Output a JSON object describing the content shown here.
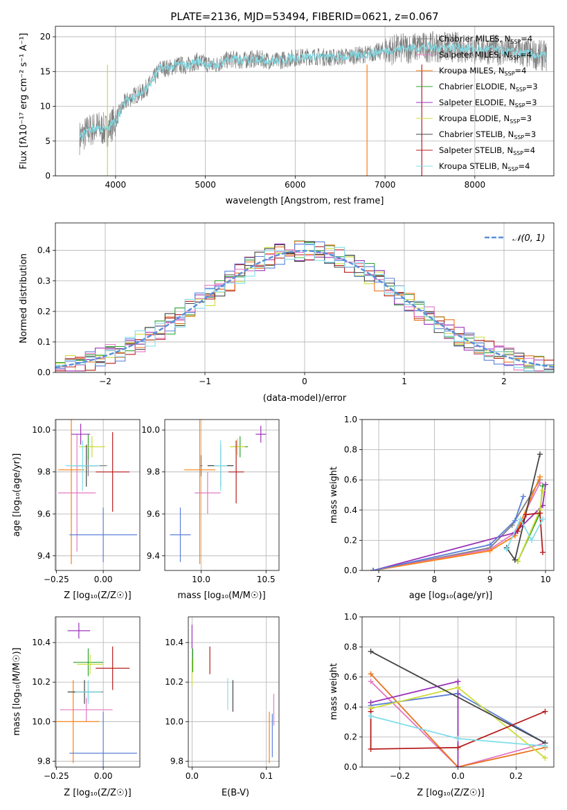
{
  "colors": {
    "Chabrier MILES": "#7f7f7f",
    "Salpeter MILES": "#e377c2",
    "Kroupa MILES": "#ff7f0e",
    "Chabrier ELODIE": "#2ca02c",
    "Salpeter ELODIE": "#9b30b8",
    "Kroupa ELODIE": "#cddc39",
    "Chabrier STELIB": "#444444",
    "Salpeter STELIB": "#b71c1c",
    "Kroupa STELIB": "#80deea",
    "Blue": "#5a7fd8",
    "Orange": "#e8731e"
  },
  "chart_data": [
    {
      "id": "spectrum",
      "type": "line",
      "title": "PLATE=2136, MJD=53494, FIBERID=0621, z=0.067",
      "xlabel": "wavelength [Angstrom, rest frame]",
      "ylabel": "Flux [fλ10⁻¹⁷ erg cm⁻² s⁻¹ A⁻¹]",
      "xlim": [
        3330,
        8880
      ],
      "ylim": [
        0,
        21.5
      ],
      "xticks": [
        "4000",
        "5000",
        "6000",
        "7000",
        "8000"
      ],
      "yticks": [
        "0",
        "5",
        "10",
        "15",
        "20"
      ],
      "legend_position": "right",
      "legend": [
        "Chabrier MILES, N_SSP=4",
        "Salpeter MILES, N_SSP=4",
        "Kroupa MILES, N_SSP=4",
        "Chabrier ELODIE, N_SSP=3",
        "Salpeter ELODIE, N_SSP=3",
        "Kroupa ELODIE, N_SSP=3",
        "Chabrier STELIB, N_SSP=3",
        "Salpeter STELIB, N_SSP=4",
        "Kroupa STELIB, N_SSP=4"
      ],
      "continuum": {
        "x": [
          3600,
          3700,
          3800,
          3900,
          4000,
          4100,
          4200,
          4300,
          4400,
          4500,
          4600,
          4700,
          4800,
          4900,
          5000,
          5100,
          5200,
          5300,
          5400,
          5500,
          5600,
          5700,
          5800,
          5900,
          6000,
          6200,
          6400,
          6600,
          6800,
          7000,
          7200,
          7400,
          7600,
          7800,
          8000,
          8200,
          8400,
          8600,
          8800
        ],
        "y": [
          5.5,
          6.5,
          7,
          6.5,
          8,
          10.5,
          11.5,
          12,
          13.5,
          15.5,
          15.5,
          16,
          15.8,
          16.5,
          16.2,
          15.8,
          16.5,
          16.8,
          16.5,
          16.8,
          16.8,
          16.6,
          16.5,
          16.8,
          17,
          17.2,
          17,
          17.2,
          17.5,
          18,
          18.3,
          18.5,
          18.5,
          18.5,
          18.2,
          18.2,
          17.8,
          17.5,
          17.2
        ]
      }
    },
    {
      "id": "residuals",
      "type": "line",
      "xlabel": "(data-model)/error",
      "ylabel": "Normed distribution",
      "xlim": [
        -2.5,
        2.5
      ],
      "ylim": [
        0,
        0.49
      ],
      "xticks": [
        "−2",
        "−1",
        "0",
        "1",
        "2"
      ],
      "yticks": [
        "0.0",
        "0.1",
        "0.2",
        "0.3",
        "0.4"
      ],
      "legend": [
        "𝒩(0, 1)"
      ],
      "legend_position": "top-right",
      "bin_width": 0.1
    },
    {
      "id": "age_vs_Z",
      "type": "scatter",
      "xlabel": "Z [log₁₀(Z/Z☉)]",
      "ylabel": "age  [log₁₀(age/yr)]",
      "xlim": [
        -0.255,
        0.195
      ],
      "ylim": [
        9.33,
        10.05
      ],
      "xticks": [
        "−0.25",
        "0.00"
      ],
      "yticks": [
        "9.4",
        "9.6",
        "9.8",
        "10.0"
      ],
      "points": [
        {
          "model": "Chabrier MILES",
          "x": -0.08,
          "xerr": 0.1,
          "y": 9.83,
          "yerr": 0.05
        },
        {
          "model": "Salpeter MILES",
          "x": -0.14,
          "xerr": 0.1,
          "y": 9.7,
          "yerr": 0.28
        },
        {
          "model": "Kroupa MILES",
          "x": -0.17,
          "xerr": 0.07,
          "y": 9.81,
          "yerr": 0.45
        },
        {
          "model": "Chabrier ELODIE",
          "x": -0.08,
          "xerr": 0.03,
          "y": 9.92,
          "yerr": 0.06
        },
        {
          "model": "Salpeter ELODIE",
          "x": -0.12,
          "xerr": 0.05,
          "y": 9.98,
          "yerr": 0.05
        },
        {
          "model": "Kroupa ELODIE",
          "x": -0.06,
          "xerr": 0.07,
          "y": 9.92,
          "yerr": 0.05
        },
        {
          "model": "Chabrier STELIB",
          "x": -0.09,
          "xerr": 0.06,
          "y": 9.83,
          "yerr": 0.1
        },
        {
          "model": "Salpeter STELIB",
          "x": 0.05,
          "xerr": 0.09,
          "y": 9.8,
          "yerr": 0.19
        },
        {
          "model": "Kroupa STELIB",
          "x": -0.11,
          "xerr": 0.09,
          "y": 9.83,
          "yerr": 0.12
        },
        {
          "model": "Blue",
          "x": 0.0,
          "xerr": 0.18,
          "y": 9.5,
          "yerr": 0.13
        }
      ]
    },
    {
      "id": "age_vs_mass",
      "type": "scatter",
      "xlabel": "mass [log₁₀(M/M☉)]",
      "xlim": [
        9.72,
        10.6
      ],
      "ylim": [
        9.33,
        10.05
      ],
      "xticks": [
        "10.0",
        "10.5"
      ],
      "yticks": [
        "9.4",
        "9.6",
        "9.8",
        "10.0"
      ],
      "points": [
        {
          "model": "Chabrier MILES",
          "x": 10.0,
          "xerr": 0.01,
          "y": 9.83,
          "yerr": 0.05
        },
        {
          "model": "Salpeter MILES",
          "x": 10.05,
          "xerr": 0.1,
          "y": 9.7,
          "yerr": 0.1
        },
        {
          "model": "Kroupa MILES",
          "x": 9.99,
          "xerr": 0.12,
          "y": 9.81,
          "yerr": 0.45
        },
        {
          "model": "Chabrier ELODIE",
          "x": 10.3,
          "xerr": 0.06,
          "y": 9.92,
          "yerr": 0.05
        },
        {
          "model": "Salpeter ELODIE",
          "x": 10.46,
          "xerr": 0.04,
          "y": 9.98,
          "yerr": 0.04
        },
        {
          "model": "Kroupa ELODIE",
          "x": 10.28,
          "xerr": 0.06,
          "y": 9.92,
          "yerr": 0.04
        },
        {
          "model": "Chabrier STELIB",
          "x": 10.15,
          "xerr": 0.1,
          "y": 9.83,
          "yerr": 0.1
        },
        {
          "model": "Salpeter STELIB",
          "x": 10.27,
          "xerr": 0.06,
          "y": 9.8,
          "yerr": 0.15
        },
        {
          "model": "Kroupa STELIB",
          "x": 10.15,
          "xerr": 0.05,
          "y": 9.83,
          "yerr": 0.12
        },
        {
          "model": "Blue",
          "x": 9.84,
          "xerr": 0.08,
          "y": 9.5,
          "yerr": 0.13
        }
      ]
    },
    {
      "id": "weight_vs_age",
      "type": "line",
      "xlabel": "age  [log₁₀(age/yr)]",
      "ylabel": "mass weight",
      "xlim": [
        6.7,
        10.15
      ],
      "ylim": [
        0,
        1.0
      ],
      "xticks": [
        "7",
        "8",
        "9",
        "10"
      ],
      "yticks": [
        "0.0",
        "0.2",
        "0.4",
        "0.6",
        "0.8",
        "1.0"
      ],
      "series": [
        {
          "model": "Chabrier MILES",
          "x": [
            6.9,
            9.0,
            9.4,
            9.9
          ],
          "y": [
            0.0,
            0.15,
            0.3,
            0.6
          ]
        },
        {
          "model": "Salpeter MILES",
          "x": [
            6.9,
            9.0,
            9.45,
            9.9
          ],
          "y": [
            0.0,
            0.14,
            0.25,
            0.58
          ]
        },
        {
          "model": "Kroupa MILES",
          "x": [
            6.9,
            9.0,
            9.45,
            9.9
          ],
          "y": [
            0.0,
            0.13,
            0.23,
            0.62
          ]
        },
        {
          "model": "Chabrier ELODIE",
          "x": [
            9.5,
            9.9,
            9.95
          ],
          "y": [
            0.06,
            0.38,
            0.56
          ]
        },
        {
          "model": "Salpeter ELODIE",
          "x": [
            6.9,
            9.45,
            9.95,
            10.0
          ],
          "y": [
            0.0,
            0.25,
            0.43,
            0.57
          ]
        },
        {
          "model": "Kroupa ELODIE",
          "x": [
            9.5,
            9.9,
            9.95
          ],
          "y": [
            0.06,
            0.4,
            0.53
          ]
        },
        {
          "model": "Chabrier STELIB",
          "x": [
            9.3,
            9.45,
            9.9
          ],
          "y": [
            0.15,
            0.07,
            0.77
          ]
        },
        {
          "model": "Salpeter STELIB",
          "x": [
            9.5,
            9.65,
            9.9,
            9.95
          ],
          "y": [
            0.26,
            0.37,
            0.38,
            0.12
          ]
        },
        {
          "model": "Kroupa STELIB",
          "x": [
            9.3,
            9.55,
            9.75,
            9.95
          ],
          "y": [
            0.14,
            0.34,
            0.2,
            0.34
          ]
        },
        {
          "model": "Blue",
          "x": [
            6.9,
            9.0,
            9.45,
            9.6
          ],
          "y": [
            0.0,
            0.17,
            0.33,
            0.49
          ]
        }
      ]
    },
    {
      "id": "mass_vs_Z",
      "type": "scatter",
      "xlabel": "Z [log₁₀(Z/Z☉)]",
      "ylabel": "mass [log₁₀(M/M☉)]",
      "xlim": [
        -0.255,
        0.195
      ],
      "ylim": [
        9.77,
        10.53
      ],
      "xticks": [
        "−0.25",
        "0.00"
      ],
      "yticks": [
        "9.8",
        "10.0",
        "10.2",
        "10.4"
      ],
      "points": [
        {
          "model": "Chabrier MILES",
          "x": -0.08,
          "xerr": 0.08,
          "y": 10.15,
          "yerr": 0.05
        },
        {
          "model": "Salpeter MILES",
          "x": -0.09,
          "xerr": 0.14,
          "y": 10.06,
          "yerr": 0.06
        },
        {
          "model": "Kroupa MILES",
          "x": -0.16,
          "xerr": 0.14,
          "y": 10.0,
          "yerr": 0.21
        },
        {
          "model": "Chabrier ELODIE",
          "x": -0.08,
          "xerr": 0.08,
          "y": 10.3,
          "yerr": 0.07
        },
        {
          "model": "Salpeter ELODIE",
          "x": -0.13,
          "xerr": 0.06,
          "y": 10.46,
          "yerr": 0.04
        },
        {
          "model": "Kroupa ELODIE",
          "x": -0.07,
          "xerr": 0.07,
          "y": 10.29,
          "yerr": 0.05
        },
        {
          "model": "Chabrier STELIB",
          "x": -0.1,
          "xerr": 0.09,
          "y": 10.15,
          "yerr": 0.06
        },
        {
          "model": "Salpeter STELIB",
          "x": 0.05,
          "xerr": 0.09,
          "y": 10.27,
          "yerr": 0.11
        },
        {
          "model": "Kroupa STELIB",
          "x": -0.08,
          "xerr": 0.07,
          "y": 10.15,
          "yerr": 0.06
        },
        {
          "model": "Blue",
          "x": 0.0,
          "xerr": 0.18,
          "y": 9.84,
          "yerr": 0.21
        }
      ]
    },
    {
      "id": "mass_vs_ebv",
      "type": "scatter",
      "xlabel": "E(B-V)",
      "xlim": [
        -0.005,
        0.117
      ],
      "ylim": [
        9.77,
        10.53
      ],
      "xticks": [
        "0.0",
        "0.1"
      ],
      "yticks": [
        "9.8",
        "10.0",
        "10.2",
        "10.4"
      ],
      "points": [
        {
          "model": "Salpeter MILES",
          "x": 0.11,
          "xerr": 0.0,
          "y": 10.06,
          "yerr": 0.08
        },
        {
          "model": "Kroupa MILES",
          "x": 0.104,
          "xerr": 0.0,
          "y": 9.92,
          "yerr": 0.13
        },
        {
          "model": "Salpeter ELODIE",
          "x": 0.0,
          "xerr": 0.0,
          "y": 10.43,
          "yerr": 0.06
        },
        {
          "model": "Kroupa ELODIE",
          "x": 0.0,
          "xerr": 0.0,
          "y": 10.25,
          "yerr": 0.07
        },
        {
          "model": "Chabrier ELODIE",
          "x": 0.001,
          "xerr": 0.0,
          "y": 10.31,
          "yerr": 0.06
        },
        {
          "model": "Chabrier STELIB",
          "x": 0.055,
          "xerr": 0.0,
          "y": 10.13,
          "yerr": 0.08
        },
        {
          "model": "Salpeter STELIB",
          "x": 0.024,
          "xerr": 0.0,
          "y": 10.31,
          "yerr": 0.07
        },
        {
          "model": "Kroupa STELIB",
          "x": 0.048,
          "xerr": 0.0,
          "y": 10.14,
          "yerr": 0.08
        },
        {
          "model": "Blue",
          "x": 0.108,
          "xerr": 0.0,
          "y": 9.93,
          "yerr": 0.11
        }
      ]
    },
    {
      "id": "weight_vs_Z",
      "type": "line",
      "xlabel": "Z [log₁₀(Z/Z☉)]",
      "ylabel": "mass weight",
      "xlim": [
        -0.33,
        0.33
      ],
      "ylim": [
        0,
        1.0
      ],
      "xticks": [
        "−0.2",
        "0.0",
        "0.2"
      ],
      "yticks": [
        "0.0",
        "0.2",
        "0.4",
        "0.6",
        "0.8",
        "1.0"
      ],
      "series": [
        {
          "model": "Salpeter MILES",
          "x": [
            -0.3,
            0.0,
            0.3
          ],
          "y": [
            0.57,
            0.0,
            0.16
          ]
        },
        {
          "model": "Orange",
          "x": [
            -0.3,
            0.0,
            0.3
          ],
          "y": [
            0.62,
            0.0,
            0.13
          ]
        },
        {
          "model": "Blue",
          "x": [
            -0.3,
            0.0,
            0.3
          ],
          "y": [
            0.41,
            0.49,
            0.16
          ]
        },
        {
          "model": "Salpeter ELODIE",
          "x": [
            -0.3,
            0.0,
            0.0
          ],
          "y": [
            0.43,
            0.57,
            0.0
          ]
        },
        {
          "model": "Kroupa ELODIE",
          "x": [
            -0.3,
            0.0,
            0.3
          ],
          "y": [
            0.39,
            0.53,
            0.06
          ]
        },
        {
          "model": "Chabrier STELIB",
          "x": [
            -0.3,
            0.3
          ],
          "y": [
            0.77,
            0.16
          ]
        },
        {
          "model": "Salpeter STELIB",
          "x": [
            -0.3,
            -0.3,
            0.0,
            0.3
          ],
          "y": [
            0.37,
            0.12,
            0.13,
            0.37
          ]
        },
        {
          "model": "Kroupa STELIB",
          "x": [
            -0.3,
            0.0,
            0.3
          ],
          "y": [
            0.34,
            0.19,
            0.14
          ]
        }
      ]
    }
  ]
}
